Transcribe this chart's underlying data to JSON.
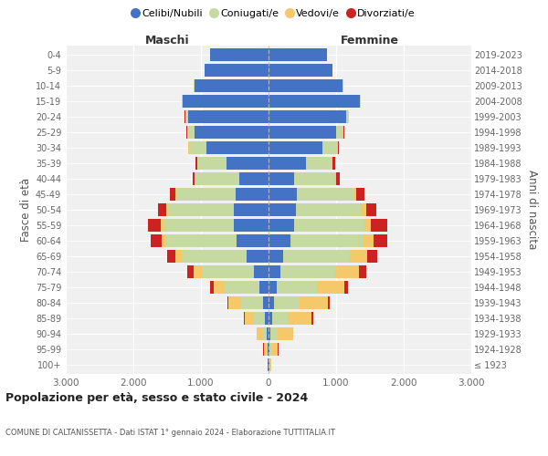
{
  "age_groups": [
    "100+",
    "95-99",
    "90-94",
    "85-89",
    "80-84",
    "75-79",
    "70-74",
    "65-69",
    "60-64",
    "55-59",
    "50-54",
    "45-49",
    "40-44",
    "35-39",
    "30-34",
    "25-29",
    "20-24",
    "15-19",
    "10-14",
    "5-9",
    "0-4"
  ],
  "birth_years": [
    "≤ 1923",
    "1924-1928",
    "1929-1933",
    "1934-1938",
    "1939-1943",
    "1944-1948",
    "1949-1953",
    "1954-1958",
    "1959-1963",
    "1964-1968",
    "1969-1973",
    "1974-1978",
    "1979-1983",
    "1984-1988",
    "1989-1993",
    "1994-1998",
    "1999-2003",
    "2004-2008",
    "2009-2013",
    "2014-2018",
    "2019-2023"
  ],
  "colors": {
    "celibi": "#4472c4",
    "coniugati": "#c5d9a0",
    "vedovi": "#f5c96a",
    "divorziati": "#cc2222"
  },
  "males": {
    "celibi": [
      10,
      20,
      30,
      50,
      80,
      130,
      220,
      330,
      470,
      510,
      510,
      490,
      430,
      620,
      920,
      1090,
      1190,
      1270,
      1100,
      950,
      870
    ],
    "coniugati": [
      5,
      20,
      60,
      170,
      320,
      520,
      760,
      950,
      1050,
      1030,
      980,
      870,
      650,
      430,
      260,
      110,
      40,
      15,
      5,
      0,
      0
    ],
    "vedovi": [
      5,
      30,
      80,
      130,
      200,
      160,
      130,
      100,
      60,
      50,
      30,
      20,
      10,
      5,
      5,
      5,
      5,
      0,
      0,
      0,
      0
    ],
    "divorziati": [
      0,
      5,
      10,
      10,
      10,
      50,
      90,
      120,
      170,
      200,
      120,
      80,
      30,
      20,
      10,
      10,
      5,
      0,
      0,
      0,
      0
    ]
  },
  "females": {
    "celibi": [
      10,
      20,
      30,
      50,
      80,
      120,
      170,
      220,
      330,
      380,
      400,
      420,
      380,
      560,
      800,
      1000,
      1150,
      1350,
      1100,
      950,
      870
    ],
    "coniugati": [
      5,
      30,
      100,
      230,
      380,
      600,
      820,
      980,
      1060,
      1040,
      970,
      840,
      600,
      380,
      220,
      100,
      30,
      10,
      5,
      0,
      0
    ],
    "vedovi": [
      20,
      90,
      230,
      360,
      420,
      400,
      350,
      260,
      170,
      100,
      70,
      40,
      20,
      10,
      5,
      5,
      5,
      0,
      0,
      0,
      0
    ],
    "divorziati": [
      0,
      5,
      10,
      20,
      30,
      60,
      100,
      150,
      200,
      230,
      160,
      120,
      50,
      30,
      15,
      10,
      5,
      0,
      0,
      0,
      0
    ]
  },
  "xlim": 3000,
  "xtick_labels": [
    "3.000",
    "2.000",
    "1.000",
    "0",
    "1.000",
    "2.000",
    "3.000"
  ],
  "title": "Popolazione per età, sesso e stato civile - 2024",
  "subtitle": "COMUNE DI CALTANISSETTA - Dati ISTAT 1° gennaio 2024 - Elaborazione TUTTITALIA.IT",
  "ylabel_left": "Fasce di età",
  "ylabel_right": "Anni di nascita",
  "header_left": "Maschi",
  "header_right": "Femmine",
  "legend_labels": [
    "Celibi/Nubili",
    "Coniugati/e",
    "Vedovi/e",
    "Divorziati/e"
  ],
  "bg_color": "#f0f0f0",
  "plot_bg": "#ffffff"
}
